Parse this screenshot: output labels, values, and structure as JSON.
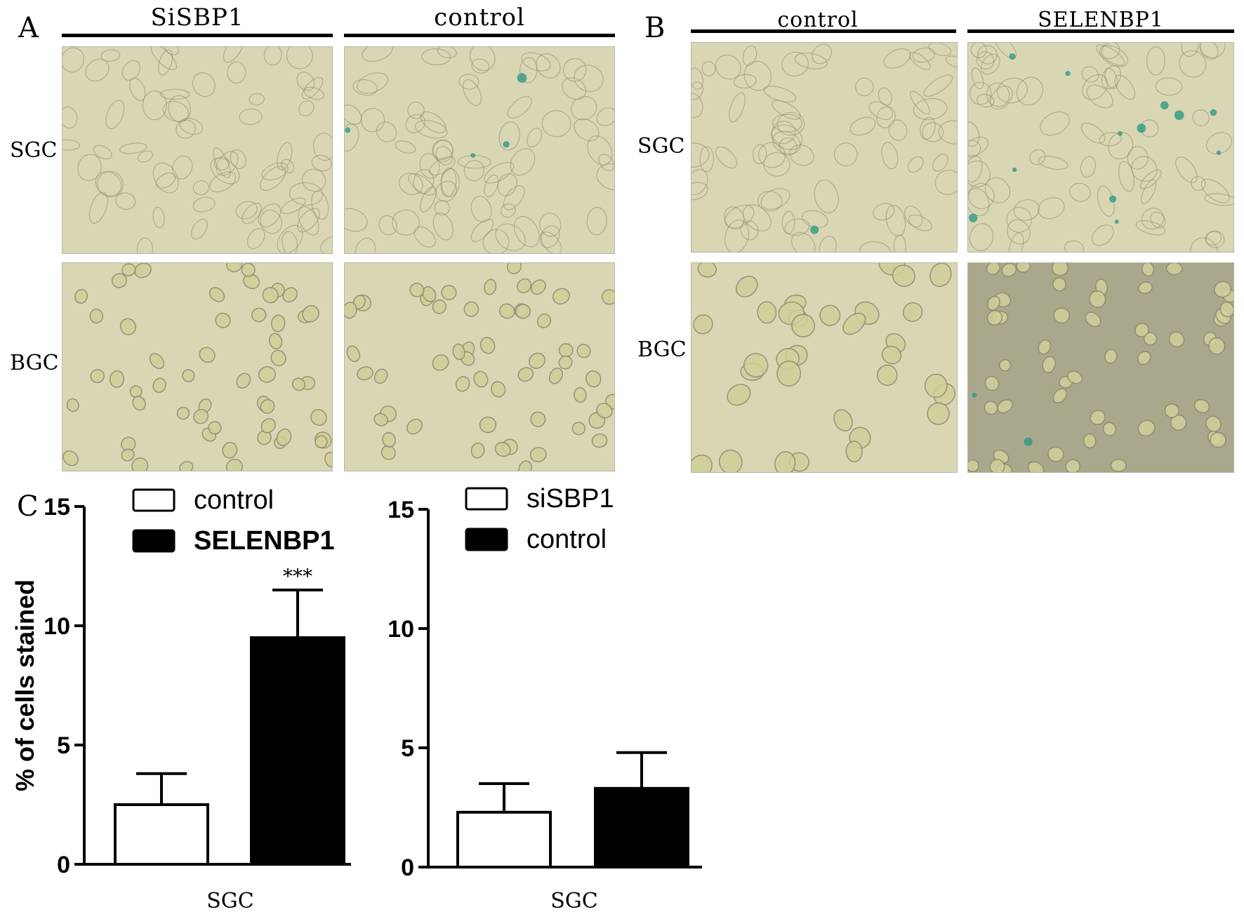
{
  "panel_letters": {
    "a": "A",
    "b": "B",
    "c": "C"
  },
  "panel_a": {
    "columns": [
      "SiSBP1",
      "control"
    ],
    "rows": [
      "SGC",
      "BGC"
    ]
  },
  "panel_b": {
    "columns": [
      "control",
      "SELENBP1"
    ],
    "rows": [
      "SGC",
      "BGC"
    ]
  },
  "colors": {
    "micro_bg": "#d9d6b4",
    "micro_bg_dark": "#a9a88d",
    "cell_fill": "#cfd09a",
    "cell_edge": "#8f8c72",
    "stain": "#2f9a86"
  },
  "chart_data": [
    {
      "type": "bar",
      "categories": [
        "SGC"
      ],
      "series": [
        {
          "name": "control",
          "values": [
            2.5
          ],
          "error": [
            1.3
          ],
          "color": "#ffffff"
        },
        {
          "name": "SELENBP1",
          "values": [
            9.5
          ],
          "error": [
            2.0
          ],
          "color": "#000000"
        }
      ],
      "xlabel": "SGC",
      "ylabel": "% of cells stained",
      "ylim": [
        0,
        15
      ],
      "yticks": [
        0,
        5,
        10,
        15
      ],
      "annotations": [
        "***"
      ],
      "legend": "top-left"
    },
    {
      "type": "bar",
      "categories": [
        "SGC"
      ],
      "series": [
        {
          "name": "siSBP1",
          "values": [
            2.3
          ],
          "error": [
            1.2
          ],
          "color": "#ffffff"
        },
        {
          "name": "control",
          "values": [
            3.3
          ],
          "error": [
            1.5
          ],
          "color": "#000000"
        }
      ],
      "xlabel": "SGC",
      "ylabel": "",
      "ylim": [
        0,
        15
      ],
      "yticks": [
        0,
        5,
        10,
        15
      ],
      "annotations": [],
      "legend": "top-left"
    }
  ]
}
